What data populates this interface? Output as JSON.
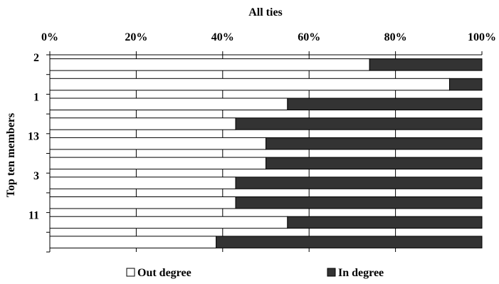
{
  "chart_data": {
    "type": "bar",
    "orientation": "horizontal",
    "stacking": "percent",
    "title": "All ties",
    "ylabel": "Top ten members",
    "xlabel": "",
    "x_ticks": [
      "0%",
      "20%",
      "40%",
      "60%",
      "80%",
      "100%"
    ],
    "xlim": [
      0,
      100
    ],
    "grid": "vertical",
    "legend_position": "bottom",
    "categories": [
      "2",
      "",
      "1",
      "",
      "13",
      "",
      "3",
      "",
      "11",
      ""
    ],
    "series": [
      {
        "name": "Out degree",
        "color": "#ffffff",
        "values": [
          74,
          92.5,
          55,
          43,
          50,
          50,
          43,
          43,
          55,
          38.5
        ]
      },
      {
        "name": "In degree",
        "color": "#333333",
        "values": [
          26,
          7.5,
          45,
          57,
          50,
          50,
          57,
          57,
          45,
          61.5
        ]
      }
    ]
  }
}
